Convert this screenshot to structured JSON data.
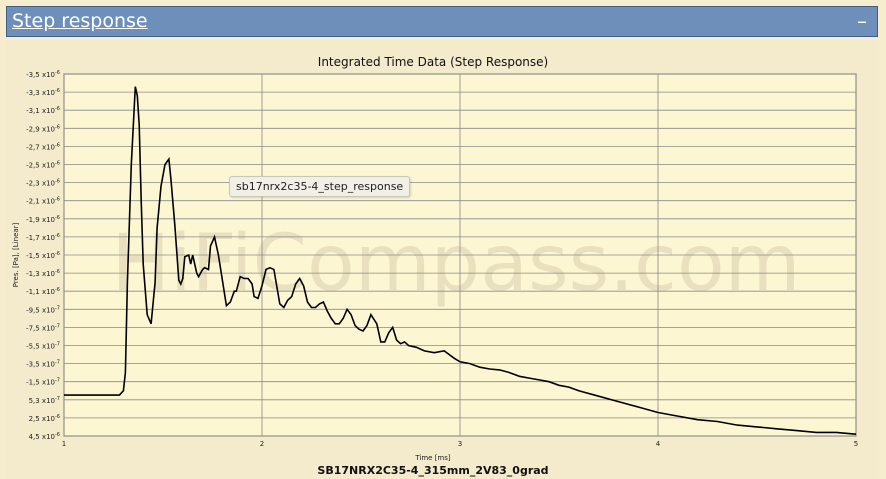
{
  "header": {
    "title": "Step response",
    "collapse_label": "–"
  },
  "watermark": "HiFiCompass.com",
  "tooltip": "sb17nrx2c35-4_step_response",
  "colors": {
    "header_bg": "#6d8fb9",
    "plot_bg": "#fdf6d3",
    "grid": "#7d7d7d",
    "trace": "#000000"
  },
  "chart_data": {
    "type": "line",
    "title": "Integrated Time Data (Step Response)",
    "subtitle": "SB17NRX2C35-4_315mm_2V83_0grad",
    "xlabel": "Time [ms]",
    "ylabel": "Pres. [Pa], [Linear]",
    "xlim": [
      1,
      5
    ],
    "x_ticks": [
      "1",
      "2",
      "3",
      "4",
      "5"
    ],
    "y_ticks": [
      {
        "mant": "-3,5",
        "exp": "-6"
      },
      {
        "mant": "-3,3",
        "exp": "-6"
      },
      {
        "mant": "-3,1",
        "exp": "-6"
      },
      {
        "mant": "-2,9",
        "exp": "-6"
      },
      {
        "mant": "-2,7",
        "exp": "-6"
      },
      {
        "mant": "-2,5",
        "exp": "-6"
      },
      {
        "mant": "-2,3",
        "exp": "-6"
      },
      {
        "mant": "-2,1",
        "exp": "-6"
      },
      {
        "mant": "-1,9",
        "exp": "-6"
      },
      {
        "mant": "-1,7",
        "exp": "-6"
      },
      {
        "mant": "-1,5",
        "exp": "-6"
      },
      {
        "mant": "-1,3",
        "exp": "-6"
      },
      {
        "mant": "-1,1",
        "exp": "-6"
      },
      {
        "mant": "-9,5",
        "exp": "-7"
      },
      {
        "mant": "-7,5",
        "exp": "-7"
      },
      {
        "mant": "-5,5",
        "exp": "-7"
      },
      {
        "mant": "-3,5",
        "exp": "-7"
      },
      {
        "mant": "-1,5",
        "exp": "-7"
      },
      {
        "mant": "5,3",
        "exp": "-7"
      },
      {
        "mant": "2,5",
        "exp": "-6"
      },
      {
        "mant": "4,5",
        "exp": "-6"
      }
    ],
    "ylim": [
      0,
      20
    ],
    "grid": true,
    "series": [
      {
        "x": [
          1.0,
          1.28,
          1.3,
          1.31,
          1.32,
          1.34,
          1.36,
          1.37,
          1.38,
          1.39,
          1.4,
          1.42,
          1.44,
          1.46,
          1.47,
          1.49,
          1.51,
          1.53,
          1.54,
          1.56,
          1.58,
          1.59,
          1.6,
          1.61,
          1.63,
          1.64,
          1.65,
          1.67,
          1.68,
          1.7,
          1.71,
          1.73,
          1.74,
          1.76,
          1.78,
          1.8,
          1.82,
          1.84,
          1.86,
          1.87,
          1.89,
          1.91,
          1.93,
          1.95,
          1.96,
          1.98,
          2.0,
          2.02,
          2.04,
          2.06,
          2.09,
          2.11,
          2.13,
          2.15,
          2.17,
          2.19,
          2.21,
          2.23,
          2.25,
          2.27,
          2.29,
          2.31,
          2.33,
          2.35,
          2.37,
          2.39,
          2.41,
          2.43,
          2.45,
          2.47,
          2.49,
          2.51,
          2.53,
          2.55,
          2.58,
          2.6,
          2.62,
          2.64,
          2.66,
          2.68,
          2.7,
          2.72,
          2.74,
          2.78,
          2.82,
          2.87,
          2.92,
          2.97,
          3.0,
          3.05,
          3.1,
          3.15,
          3.2,
          3.25,
          3.3,
          3.35,
          3.4,
          3.45,
          3.5,
          3.55,
          3.6,
          3.7,
          3.8,
          3.9,
          4.0,
          4.1,
          4.2,
          4.3,
          4.4,
          4.5,
          4.6,
          4.7,
          4.8,
          4.9,
          5.0
        ],
        "y": [
          2.26,
          2.26,
          2.5,
          3.5,
          8.5,
          15.0,
          19.3,
          18.8,
          17.2,
          13.0,
          9.5,
          6.7,
          6.2,
          8.5,
          11.5,
          13.8,
          15.0,
          15.3,
          14.2,
          11.6,
          8.6,
          8.4,
          8.7,
          9.9,
          10.0,
          9.5,
          10.0,
          9.0,
          8.8,
          9.2,
          9.3,
          9.2,
          10.5,
          11.0,
          10.0,
          8.6,
          7.2,
          7.4,
          8.0,
          8.0,
          8.8,
          8.7,
          8.7,
          8.4,
          7.7,
          7.6,
          8.3,
          9.2,
          9.3,
          9.2,
          7.3,
          7.1,
          7.5,
          7.7,
          8.4,
          8.7,
          8.3,
          7.4,
          7.1,
          7.1,
          7.3,
          7.4,
          6.9,
          6.5,
          6.2,
          6.2,
          6.5,
          7.0,
          6.7,
          6.1,
          5.9,
          5.8,
          6.1,
          6.7,
          6.2,
          5.2,
          5.2,
          5.7,
          6.0,
          5.3,
          5.1,
          5.2,
          5.0,
          4.9,
          4.7,
          4.6,
          4.7,
          4.3,
          4.1,
          4.0,
          3.8,
          3.7,
          3.65,
          3.5,
          3.3,
          3.2,
          3.1,
          3.0,
          2.8,
          2.7,
          2.5,
          2.2,
          1.9,
          1.6,
          1.3,
          1.1,
          0.9,
          0.8,
          0.6,
          0.5,
          0.4,
          0.3,
          0.2,
          0.2,
          0.1
        ]
      }
    ]
  }
}
